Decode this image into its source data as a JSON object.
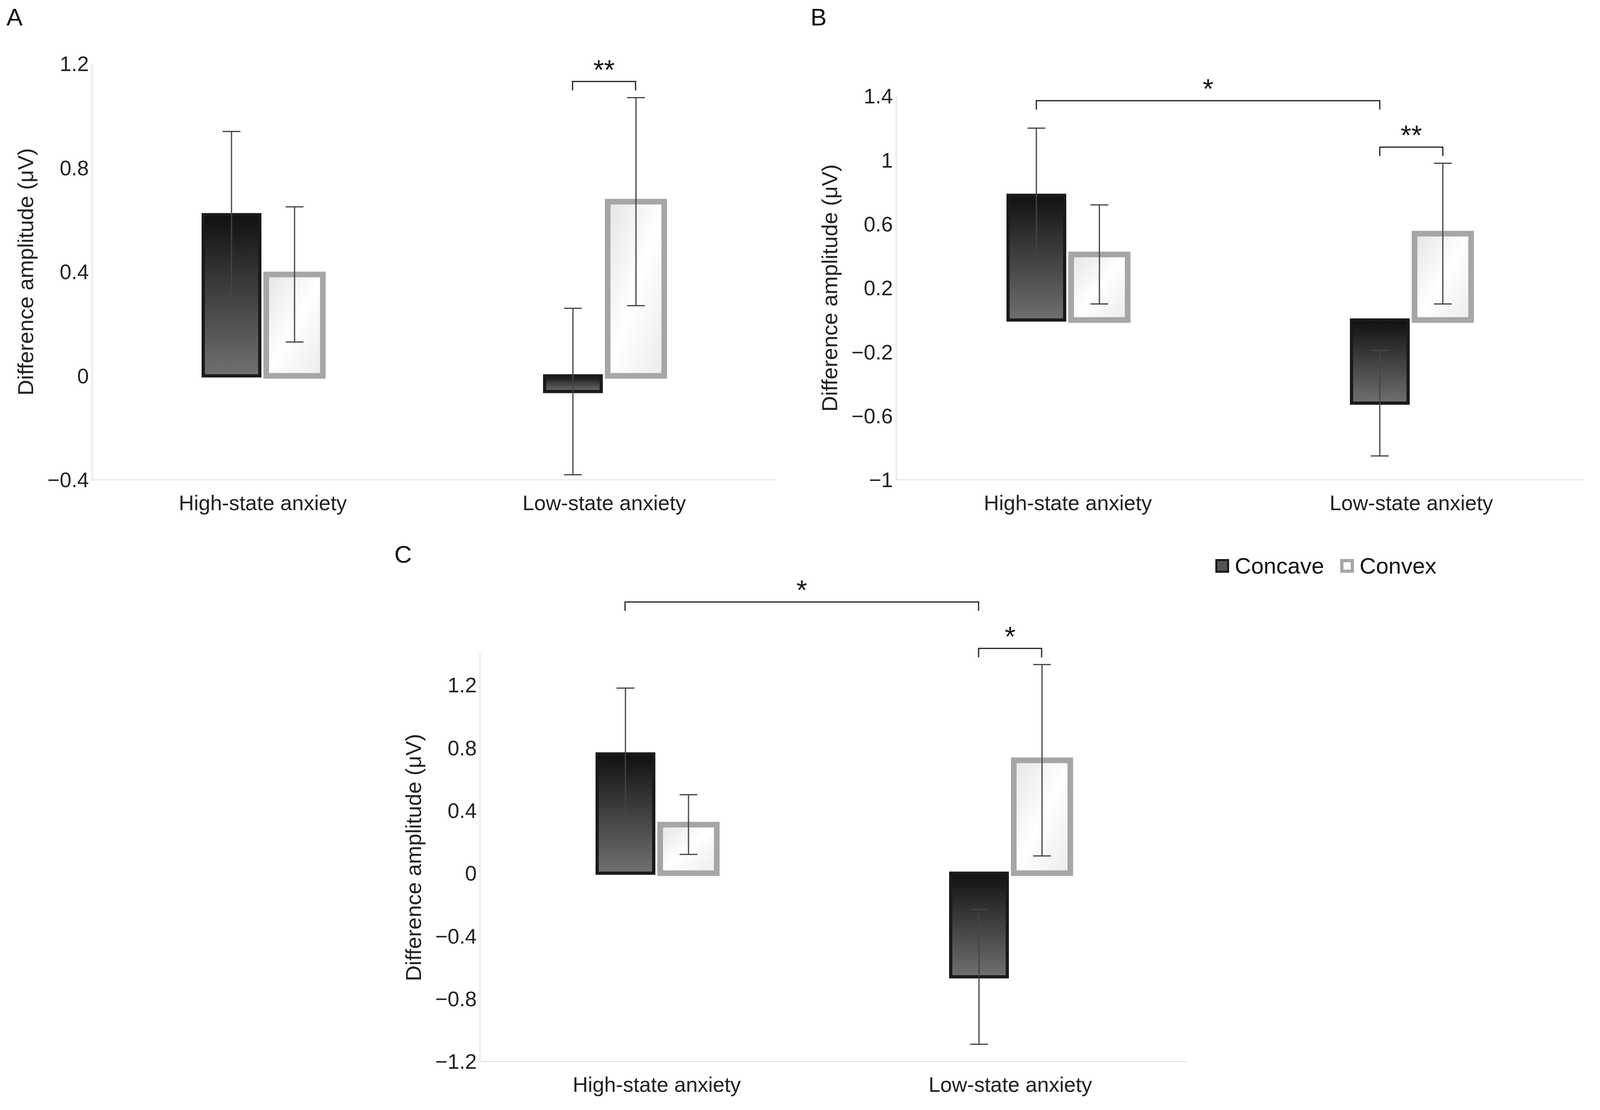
{
  "chart_data": [
    {
      "type": "bar",
      "title": "A",
      "y_label": "Difference amplitude (μV)",
      "categories": [
        "High-state anxiety",
        "Low-state anxiety"
      ],
      "series": [
        {
          "name": "Concave",
          "color": "#1a1a1a",
          "values": [
            0.62,
            -0.06
          ],
          "errors": [
            0.32,
            0.32
          ]
        },
        {
          "name": "Convex",
          "color": "#a6a6a6",
          "values": [
            0.39,
            0.67
          ],
          "errors": [
            0.26,
            0.4
          ]
        }
      ],
      "ylim": [
        -0.4,
        1.2
      ],
      "yticks": [
        {
          "value": -0.4,
          "label": "−0.4"
        },
        0,
        0.4,
        0.8,
        1.2
      ],
      "grid": false,
      "brackets": [
        {
          "label": "**",
          "from": [
            "Low-state anxiety",
            "Concave"
          ],
          "to": [
            "Low-state anxiety",
            "Convex"
          ]
        }
      ]
    },
    {
      "type": "bar",
      "title": "B",
      "y_label": "Difference amplitude (μV)",
      "categories": [
        "High-state anxiety",
        "Low-state anxiety"
      ],
      "series": [
        {
          "name": "Concave",
          "color": "#1a1a1a",
          "values": [
            0.78,
            -0.52
          ],
          "errors": [
            0.42,
            0.33
          ]
        },
        {
          "name": "Convex",
          "color": "#a6a6a6",
          "values": [
            0.41,
            0.54
          ],
          "errors": [
            0.31,
            0.44
          ]
        }
      ],
      "ylim": [
        -1,
        1.4
      ],
      "yticks": [
        {
          "value": -1,
          "label": "−1"
        },
        {
          "value": -0.6,
          "label": "−0.6"
        },
        {
          "value": -0.2,
          "label": "−0.2"
        },
        0.2,
        0.6,
        1,
        1.4
      ],
      "grid": false,
      "brackets": [
        {
          "label": "*",
          "from": [
            "High-state anxiety",
            "Concave"
          ],
          "to": [
            "Low-state anxiety",
            "Concave"
          ]
        },
        {
          "label": "**",
          "from": [
            "Low-state anxiety",
            "Concave"
          ],
          "to": [
            "Low-state anxiety",
            "Convex"
          ]
        }
      ]
    },
    {
      "type": "bar",
      "title": "C",
      "y_label": "Difference amplitude (μV)",
      "categories": [
        "High-state anxiety",
        "Low-state anxiety"
      ],
      "series": [
        {
          "name": "Concave",
          "color": "#1a1a1a",
          "values": [
            0.76,
            -0.66
          ],
          "errors": [
            0.42,
            0.43
          ]
        },
        {
          "name": "Convex",
          "color": "#a6a6a6",
          "values": [
            0.31,
            0.72
          ],
          "errors": [
            0.19,
            0.61
          ]
        }
      ],
      "ylim": [
        -1.2,
        1.4
      ],
      "yticks": [
        {
          "value": -1.2,
          "label": "−1.2"
        },
        {
          "value": -0.8,
          "label": "−0.8"
        },
        {
          "value": -0.4,
          "label": "−0.4"
        },
        0,
        0.4,
        0.8,
        1.2
      ],
      "grid": false,
      "legend": "right",
      "brackets": [
        {
          "label": "*",
          "from": [
            "High-state anxiety",
            "Concave"
          ],
          "to": [
            "Low-state anxiety",
            "Concave"
          ]
        },
        {
          "label": "*",
          "from": [
            "Low-state anxiety",
            "Concave"
          ],
          "to": [
            "Low-state anxiety",
            "Convex"
          ]
        }
      ]
    }
  ]
}
